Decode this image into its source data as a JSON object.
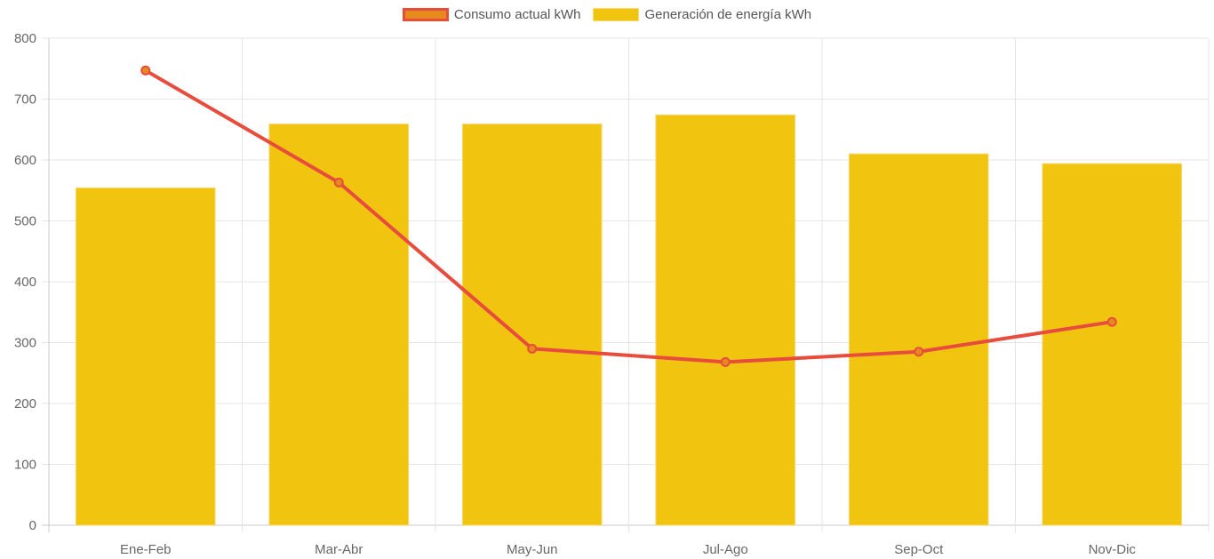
{
  "chart_data": {
    "type": "bar",
    "title": "",
    "xlabel": "",
    "ylabel": "",
    "categories": [
      "Ene-Feb",
      "Mar-Abr",
      "May-Jun",
      "Jul-Ago",
      "Sep-Oct",
      "Nov-Dic"
    ],
    "ylim": [
      0,
      800
    ],
    "yticks": [
      0,
      100,
      200,
      300,
      400,
      500,
      600,
      700,
      800
    ],
    "grid": true,
    "legend_position": "top-center",
    "series": [
      {
        "name": "Consumo actual kWh",
        "kind": "line",
        "color": "#e74c3c",
        "fill": "#e68a1c",
        "values": [
          747,
          563,
          290,
          268,
          285,
          334
        ]
      },
      {
        "name": "Generación de energía kWh",
        "kind": "bar",
        "color": "#f1c40f",
        "values": [
          554,
          659,
          659,
          674,
          610,
          594
        ]
      }
    ]
  }
}
